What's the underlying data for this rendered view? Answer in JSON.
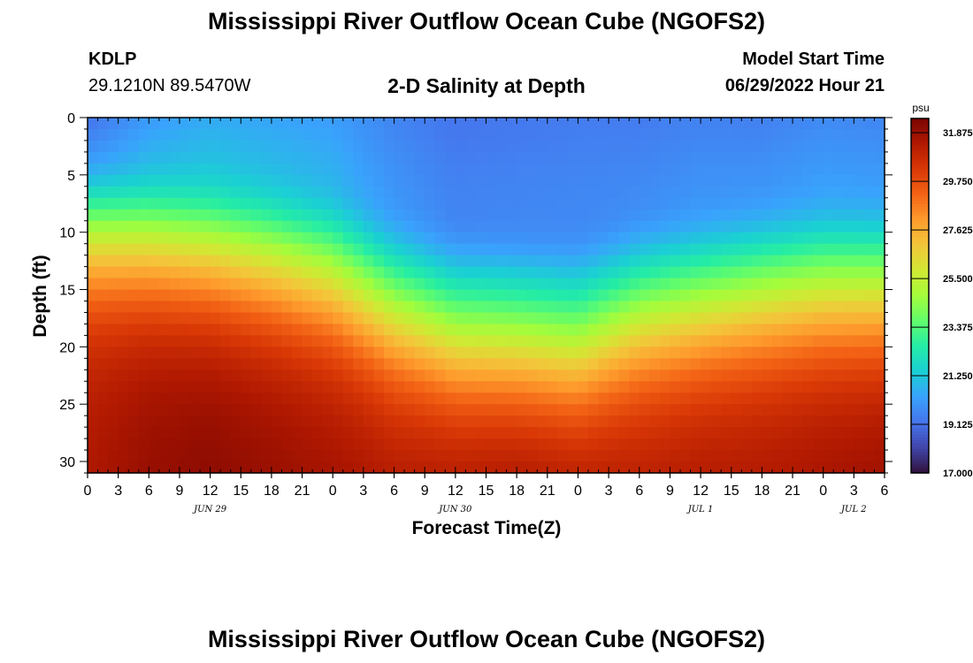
{
  "header": {
    "title": "Mississippi River Outflow Ocean Cube (NGOFS2)",
    "station": "KDLP",
    "coordinates": "29.1210N  89.5470W",
    "subtitle": "2-D Salinity at Depth",
    "model_start_label": "Model Start Time",
    "model_start_value": "06/29/2022 Hour 21"
  },
  "footer": {
    "title": "Mississippi River Outflow Ocean Cube (NGOFS2)"
  },
  "chart_data": {
    "type": "heatmap",
    "xlabel": "Forecast Time(Z)",
    "ylabel": "Depth (ft)",
    "x_ticks": [
      "0",
      "3",
      "6",
      "9",
      "12",
      "15",
      "18",
      "21",
      "0",
      "3",
      "6",
      "9",
      "12",
      "15",
      "18",
      "21",
      "0",
      "3",
      "6",
      "9",
      "12",
      "15",
      "18",
      "21",
      "0",
      "3",
      "6"
    ],
    "x_range_hours": [
      0,
      78
    ],
    "date_labels": [
      {
        "label": "JUN 29",
        "hour": 12
      },
      {
        "label": "JUN 30",
        "hour": 36
      },
      {
        "label": "JUL 1",
        "hour": 60
      },
      {
        "label": "JUL 2",
        "hour": 75
      }
    ],
    "y_ticks": [
      0,
      5,
      10,
      15,
      20,
      25,
      30
    ],
    "y_range": [
      0,
      31
    ],
    "y_inverted": true,
    "colorbar": {
      "unit": "psu",
      "min": 17.0,
      "max": 32.5,
      "ticks": [
        "31.875",
        "29.750",
        "27.625",
        "25.500",
        "23.375",
        "21.250",
        "19.125",
        "17.000"
      ],
      "colors": [
        "#30123b",
        "#4145ab",
        "#4675ed",
        "#39a2fc",
        "#1bcfd4",
        "#24eca6",
        "#61fc6c",
        "#a4fc3b",
        "#d1e834",
        "#f3c63a",
        "#fe9b2d",
        "#f36315",
        "#d93806",
        "#b11901",
        "#7a0402"
      ]
    },
    "salinity_model": {
      "description_times_hours": [
        0,
        6,
        12,
        18,
        24,
        30,
        36,
        42,
        48,
        54,
        60,
        66,
        72,
        78
      ],
      "halocline_depth_ft": [
        9.5,
        10.5,
        11.5,
        12.5,
        14,
        17,
        19,
        19.5,
        20,
        17.5,
        16.5,
        15.5,
        15,
        15
      ],
      "surface_psu": [
        18.0,
        19.2,
        19.8,
        19.8,
        19.8,
        19.4,
        19.1,
        19.2,
        19.3,
        19.2,
        19.3,
        19.2,
        19.4,
        19.3
      ],
      "bottom_psu": [
        31.5,
        32.0,
        32.2,
        32.0,
        31.8,
        31.6,
        31.8,
        32.0,
        31.8,
        31.5,
        31.6,
        31.6,
        31.8,
        32.0
      ]
    }
  }
}
